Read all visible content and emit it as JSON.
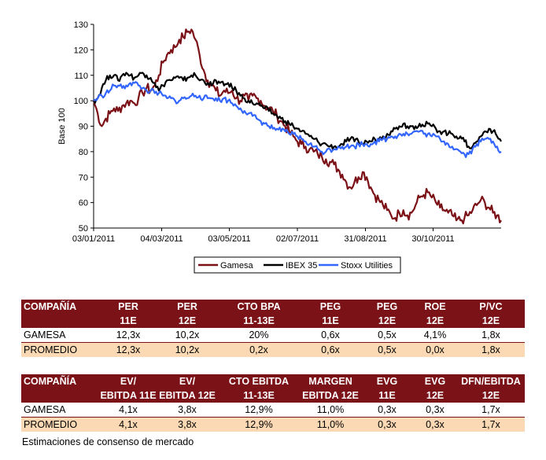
{
  "chart_data": {
    "type": "line",
    "ylabel": "Base 100",
    "ylim": [
      50,
      130
    ],
    "yticks": [
      50,
      60,
      70,
      80,
      90,
      100,
      110,
      120,
      130
    ],
    "xlim": [
      0,
      100
    ],
    "xticks": [
      {
        "pos": 0,
        "label": "03/01/2011"
      },
      {
        "pos": 16.7,
        "label": "04/03/2011"
      },
      {
        "pos": 33.3,
        "label": "03/05/2011"
      },
      {
        "pos": 50,
        "label": "02/07/2011"
      },
      {
        "pos": 66.7,
        "label": "31/08/2011"
      },
      {
        "pos": 83.3,
        "label": "30/10/2011"
      }
    ],
    "legend": [
      "Gamesa",
      "IBEX 35",
      "Stoxx Utilities"
    ],
    "legend_position": "bottom-center",
    "series": [
      {
        "name": "Gamesa",
        "color": "#7b1116",
        "x": [
          0,
          1,
          2,
          3,
          4,
          5,
          6,
          7,
          8,
          9,
          10,
          11,
          12,
          13,
          14,
          15,
          16,
          17,
          18,
          19,
          20,
          21,
          22,
          23,
          24,
          25,
          26,
          27,
          28,
          29,
          30,
          31,
          32,
          33,
          34,
          35,
          36,
          37,
          38,
          39,
          40,
          41,
          42,
          43,
          44,
          45,
          46,
          47,
          48,
          49,
          50,
          51,
          52,
          53,
          54,
          55,
          56,
          57,
          58,
          59,
          60,
          61,
          62,
          63,
          64,
          65,
          66,
          67,
          68,
          69,
          70,
          71,
          72,
          73,
          74,
          75,
          76,
          77,
          78,
          79,
          80,
          81,
          82,
          83,
          84,
          85,
          86,
          87,
          88,
          89,
          90,
          91,
          92,
          93,
          94,
          95,
          96,
          97,
          98,
          99,
          100
        ],
        "values": [
          100,
          95,
          90,
          93,
          95,
          97,
          96,
          98,
          99,
          100,
          99,
          101,
          103,
          105,
          104,
          106,
          110,
          115,
          118,
          120,
          121,
          124,
          125,
          127,
          128,
          124,
          118,
          112,
          108,
          106,
          104,
          102,
          104,
          103,
          104,
          101,
          100,
          102,
          100,
          102,
          101,
          100,
          98,
          97,
          96,
          94,
          92,
          90,
          88,
          86,
          84,
          83,
          82,
          81,
          80,
          79,
          78,
          77,
          76,
          75,
          73,
          71,
          68,
          66,
          68,
          70,
          72,
          70,
          66,
          63,
          61,
          59,
          57,
          55,
          54,
          56,
          57,
          55,
          56,
          59,
          62,
          63,
          64,
          62,
          60,
          58,
          57,
          56,
          55,
          53,
          53,
          54,
          55,
          57,
          59,
          61,
          60,
          58,
          56,
          55,
          53
        ]
      },
      {
        "name": "IBEX 35",
        "color": "#000000",
        "x": [
          0,
          1,
          2,
          3,
          4,
          5,
          6,
          7,
          8,
          9,
          10,
          11,
          12,
          13,
          14,
          15,
          16,
          17,
          18,
          19,
          20,
          21,
          22,
          23,
          24,
          25,
          26,
          27,
          28,
          29,
          30,
          31,
          32,
          33,
          34,
          35,
          36,
          37,
          38,
          39,
          40,
          41,
          42,
          43,
          44,
          45,
          46,
          47,
          48,
          49,
          50,
          51,
          52,
          53,
          54,
          55,
          56,
          57,
          58,
          59,
          60,
          61,
          62,
          63,
          64,
          65,
          66,
          67,
          68,
          69,
          70,
          71,
          72,
          73,
          74,
          75,
          76,
          77,
          78,
          79,
          80,
          81,
          82,
          83,
          84,
          85,
          86,
          87,
          88,
          89,
          90,
          91,
          92,
          93,
          94,
          95,
          96,
          97,
          98,
          99,
          100
        ],
        "values": [
          100,
          101,
          105,
          108,
          110,
          110,
          108,
          110,
          111,
          110,
          109,
          110,
          111,
          110,
          109,
          107,
          104,
          106,
          108,
          108,
          109,
          109,
          108,
          109,
          110,
          110,
          108,
          108,
          107,
          106,
          108,
          107,
          106,
          107,
          105,
          104,
          102,
          101,
          100,
          99,
          99,
          98,
          97,
          96,
          95,
          94,
          93,
          92,
          91,
          90,
          89,
          88,
          87,
          86,
          85,
          84,
          83,
          83,
          82,
          82,
          82,
          83,
          84,
          85,
          84,
          84,
          83,
          84,
          84,
          85,
          85,
          86,
          87,
          88,
          89,
          90,
          91,
          90,
          90,
          90,
          91,
          90,
          91,
          90,
          89,
          88,
          88,
          87,
          87,
          86,
          86,
          84,
          82,
          82,
          84,
          86,
          88,
          89,
          88,
          86,
          84
        ]
      },
      {
        "name": "Stoxx Utilities",
        "color": "#3366ff",
        "x": [
          0,
          1,
          2,
          3,
          4,
          5,
          6,
          7,
          8,
          9,
          10,
          11,
          12,
          13,
          14,
          15,
          16,
          17,
          18,
          19,
          20,
          21,
          22,
          23,
          24,
          25,
          26,
          27,
          28,
          29,
          30,
          31,
          32,
          33,
          34,
          35,
          36,
          37,
          38,
          39,
          40,
          41,
          42,
          43,
          44,
          45,
          46,
          47,
          48,
          49,
          50,
          51,
          52,
          53,
          54,
          55,
          56,
          57,
          58,
          59,
          60,
          61,
          62,
          63,
          64,
          65,
          66,
          67,
          68,
          69,
          70,
          71,
          72,
          73,
          74,
          75,
          76,
          77,
          78,
          79,
          80,
          81,
          82,
          83,
          84,
          85,
          86,
          87,
          88,
          89,
          90,
          91,
          92,
          93,
          94,
          95,
          96,
          97,
          98,
          99,
          100
        ],
        "values": [
          100,
          101,
          102,
          103,
          104,
          106,
          106,
          105,
          106,
          107,
          107,
          106,
          105,
          104,
          104,
          103,
          103,
          102,
          101,
          101,
          100,
          100,
          101,
          101,
          102,
          102,
          102,
          101,
          101,
          101,
          101,
          100,
          101,
          100,
          99,
          98,
          97,
          96,
          95,
          94,
          93,
          92,
          91,
          90,
          89,
          89,
          88,
          88,
          87,
          87,
          86,
          85,
          84,
          83,
          82,
          81,
          80,
          80,
          81,
          81,
          82,
          82,
          82,
          82,
          82,
          83,
          83,
          83,
          83,
          84,
          84,
          85,
          85,
          86,
          86,
          87,
          87,
          87,
          87,
          88,
          88,
          87,
          87,
          86,
          86,
          85,
          84,
          83,
          82,
          81,
          80,
          79,
          79,
          81,
          83,
          84,
          85,
          85,
          84,
          82,
          80
        ]
      }
    ]
  },
  "tables": [
    {
      "header_top": [
        "COMPAÑÍA",
        "PER",
        "PER",
        "CTO BPA",
        "PEG",
        "PEG",
        "ROE",
        "P/VC"
      ],
      "header_bottom": [
        "",
        "11E",
        "12E",
        "11-13E",
        "11E",
        "12E",
        "12E",
        "12E"
      ],
      "rows": [
        [
          "GAMESA",
          "12,3x",
          "10,2x",
          "20%",
          "0,6x",
          "0,5x",
          "4,1%",
          "1,8x"
        ],
        [
          "PROMEDIO",
          "12,3x",
          "10,2x",
          "0,2x",
          "0,6x",
          "0,5x",
          "0,0x",
          "1,8x"
        ]
      ]
    },
    {
      "header_top": [
        "COMPAÑÍA",
        "EV/",
        "EV/",
        "CTO EBITDA",
        "MARGEN",
        "EVG",
        "EVG",
        "DFN/EBITDA"
      ],
      "header_bottom": [
        "",
        "EBITDA 11E",
        "EBITDA 12E",
        "11-13E",
        "EBITDA 12E",
        "11E",
        "12E",
        "12E"
      ],
      "rows": [
        [
          "GAMESA",
          "4,1x",
          "3,8x",
          "12,9%",
          "11,0%",
          "0,3x",
          "0,3x",
          "1,7x"
        ],
        [
          "PROMEDIO",
          "4,1x",
          "3,8x",
          "12,9%",
          "11,0%",
          "0,3x",
          "0,3x",
          "1,7x"
        ]
      ]
    }
  ],
  "footnote": "Estimaciones de consenso de mercado"
}
